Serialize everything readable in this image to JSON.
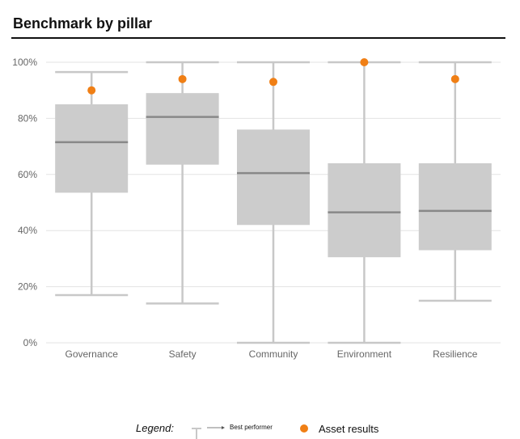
{
  "title": "Benchmark by pillar",
  "chart_data": {
    "type": "boxplot",
    "categories": [
      "Governance",
      "Safety",
      "Community",
      "Environment",
      "Resilience"
    ],
    "y_ticks": [
      "0%",
      "20%",
      "40%",
      "60%",
      "80%",
      "100%"
    ],
    "ylim": [
      0,
      100
    ],
    "grid": true,
    "boxes": [
      {
        "category": "Governance",
        "min": 17,
        "q1": 53.5,
        "median": 71.5,
        "q3": 85,
        "max": 96.5,
        "asset": 90
      },
      {
        "category": "Safety",
        "min": 14,
        "q1": 63.5,
        "median": 80.5,
        "q3": 89,
        "max": 100,
        "asset": 94
      },
      {
        "category": "Community",
        "min": 0,
        "q1": 42,
        "median": 60.5,
        "q3": 76,
        "max": 100,
        "asset": 93
      },
      {
        "category": "Environment",
        "min": 0,
        "q1": 30.5,
        "median": 46.5,
        "q3": 64,
        "max": 100,
        "asset": 100
      },
      {
        "category": "Resilience",
        "min": 15,
        "q1": 33,
        "median": 47,
        "q3": 64,
        "max": 100,
        "asset": 94
      }
    ],
    "colors": {
      "box": "#cccccc",
      "median": "#888888",
      "whisker": "#c8c8c8",
      "asset": "#f07f15",
      "grid": "#e3e3e3"
    },
    "legend": {
      "label": "Legend:",
      "best_performer": "Best performer",
      "asset_results": "Asset results"
    }
  }
}
